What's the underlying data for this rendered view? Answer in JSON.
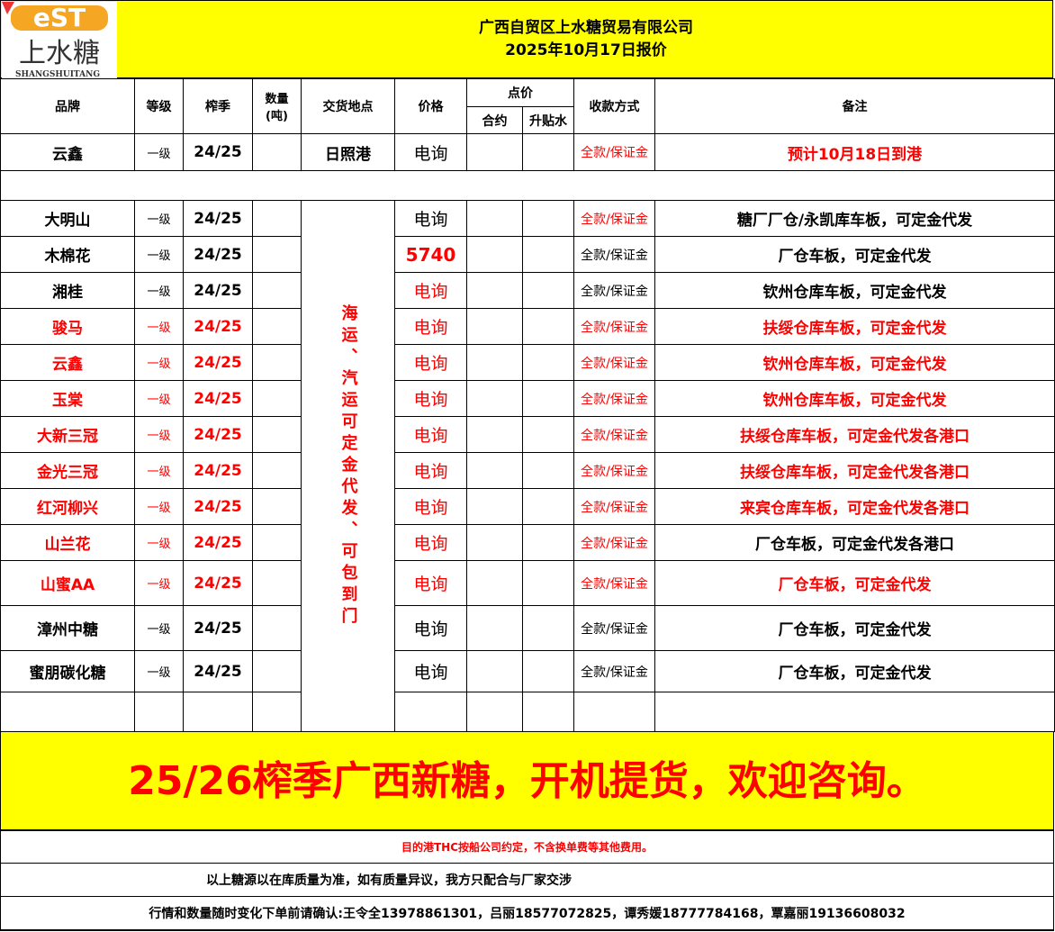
{
  "logo": {
    "mark": "eST",
    "cn": "上水糖",
    "en": "SHANGSHUITANG"
  },
  "header": {
    "company": "广西自贸区上水糖贸易有限公司",
    "date_line": "2025年10月17日报价"
  },
  "columns": {
    "brand": "品牌",
    "grade": "等级",
    "season": "榨季",
    "qty": "数量\n(吨)",
    "place": "交货地点",
    "price": "价格",
    "points": "点价",
    "contract": "合约",
    "premium": "升贴水",
    "payment": "收款方式",
    "remark": "备注"
  },
  "first_row": {
    "brand": "云鑫",
    "grade": "一级",
    "season": "24/25",
    "place": "日照港",
    "price": "电询",
    "payment": "全款/保证金",
    "remark": "预计10月18日到港"
  },
  "merged_place": "海运、汽运可定金代发、可包到门",
  "rows": [
    {
      "brand": "大明山",
      "grade": "一级",
      "season": "24/25",
      "price": "电询",
      "payment": "全款/保证金",
      "remark": "糖厂厂仓/永凯库车板，可定金代发",
      "c": [
        0,
        0,
        0,
        0,
        1,
        0
      ]
    },
    {
      "brand": "木棉花",
      "grade": "一级",
      "season": "24/25",
      "price": "5740",
      "payment": "全款/保证金",
      "remark": "厂仓车板，可定金代发",
      "c": [
        0,
        0,
        0,
        1,
        0,
        0
      ]
    },
    {
      "brand": "湘桂",
      "grade": "一级",
      "season": "24/25",
      "price": "电询",
      "payment": "全款/保证金",
      "remark": "钦州仓库车板，可定金代发",
      "c": [
        0,
        0,
        0,
        1,
        0,
        0
      ]
    },
    {
      "brand": "骏马",
      "grade": "一级",
      "season": "24/25",
      "price": "电询",
      "payment": "全款/保证金",
      "remark": "扶绥仓库车板，可定金代发",
      "c": [
        1,
        1,
        1,
        1,
        1,
        1
      ]
    },
    {
      "brand": "云鑫",
      "grade": "一级",
      "season": "24/25",
      "price": "电询",
      "payment": "全款/保证金",
      "remark": "钦州仓库车板，可定金代发",
      "c": [
        1,
        1,
        1,
        1,
        1,
        1
      ]
    },
    {
      "brand": "玉棠",
      "grade": "一级",
      "season": "24/25",
      "price": "电询",
      "payment": "全款/保证金",
      "remark": "钦州仓库车板，可定金代发",
      "c": [
        1,
        1,
        1,
        1,
        1,
        1
      ]
    },
    {
      "brand": "大新三冠",
      "grade": "一级",
      "season": "24/25",
      "price": "电询",
      "payment": "全款/保证金",
      "remark": "扶绥仓库车板，可定金代发各港口",
      "c": [
        1,
        1,
        1,
        1,
        1,
        1
      ]
    },
    {
      "brand": "金光三冠",
      "grade": "一级",
      "season": "24/25",
      "price": "电询",
      "payment": "全款/保证金",
      "remark": "扶绥仓库车板，可定金代发各港口",
      "c": [
        1,
        1,
        1,
        1,
        1,
        1
      ]
    },
    {
      "brand": "红河柳兴",
      "grade": "一级",
      "season": "24/25",
      "price": "电询",
      "payment": "全款/保证金",
      "remark": "来宾仓库车板，可定金代发各港口",
      "c": [
        1,
        1,
        1,
        1,
        1,
        1
      ]
    },
    {
      "brand": "山兰花",
      "grade": "一级",
      "season": "24/25",
      "price": "电询",
      "payment": "全款/保证金",
      "remark": "厂仓车板，可定金代发各港口",
      "c": [
        1,
        1,
        1,
        1,
        1,
        0
      ]
    },
    {
      "brand": "山蜜AA",
      "grade": "一级",
      "season": "24/25",
      "price": "电询",
      "payment": "全款/保证金",
      "remark": "厂仓车板，可定金代发",
      "c": [
        1,
        1,
        1,
        1,
        1,
        1
      ]
    },
    {
      "brand": "漳州中糖",
      "grade": "一级",
      "season": "24/25",
      "price": "电询",
      "payment": "全款/保证金",
      "remark": "厂仓车板，可定金代发",
      "c": [
        0,
        0,
        0,
        0,
        0,
        0
      ]
    },
    {
      "brand": "蜜朋碳化糖",
      "grade": "一级",
      "season": "24/25",
      "price": "电询",
      "payment": "全款/保证金",
      "remark": "厂仓车板，可定金代发",
      "c": [
        0,
        0,
        0,
        0,
        0,
        0
      ]
    }
  ],
  "banner": "25/26榨季广西新糖，开机提货，欢迎咨询。",
  "notes": {
    "thc": "目的港THC按船公司约定，不含换单费等其他费用。",
    "quality": "以上糖源以在库质量为准，如有质量异议，我方只配合与厂家交涉",
    "contacts": "行情和数量随时变化下单前请确认:王令全13978861301，吕丽18577072825，谭秀媛18777784168，覃嘉丽19136608032"
  },
  "colors": {
    "yellow": "#ffff00",
    "red": "#ff0000",
    "logo_orange": "#f5a623"
  }
}
